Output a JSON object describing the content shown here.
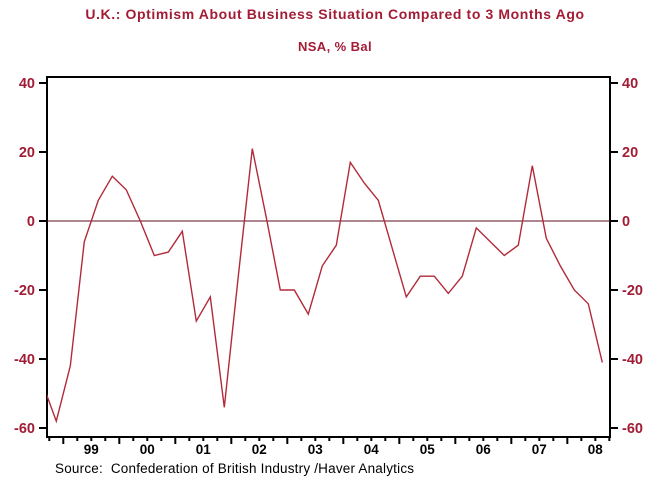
{
  "colors": {
    "accent_crimson": "#A21C35",
    "line_red": "#B22A3A",
    "zero_line": "#5E0D1C",
    "axis_black": "#000000",
    "background": "#FFFFFF"
  },
  "source_caption": "Source:  Confederation of British Industry /Haver Analytics",
  "chart_data": {
    "type": "line",
    "title": "U.K.: Optimism About Business Situation Compared to 3 Months Ago",
    "subtitle": "NSA, % Bal",
    "ylabel": "",
    "xlabel": "",
    "ylim": [
      -60,
      40
    ],
    "yticks": [
      40,
      20,
      0,
      -20,
      -40,
      -60
    ],
    "x_axis_years_shown": [
      "99",
      "00",
      "01",
      "02",
      "03",
      "04",
      "05",
      "06",
      "07",
      "08"
    ],
    "x_range_years": [
      1998.709,
      2008.762
    ],
    "x_start_year": 1998.625,
    "x_step_years": 0.25,
    "grid": "off",
    "zero_line": true,
    "legend": "none",
    "frequency": "quarterly",
    "series": [
      {
        "name": "Optimism About Business Situation vs 3 Months Ago (NSA, % Bal)",
        "quarters": [
          "1998 Q3",
          "1998 Q4",
          "1999 Q1",
          "1999 Q2",
          "1999 Q3",
          "1999 Q4",
          "2000 Q1",
          "2000 Q2",
          "2000 Q3",
          "2000 Q4",
          "2001 Q1",
          "2001 Q2",
          "2001 Q3",
          "2001 Q4",
          "2002 Q1",
          "2002 Q2",
          "2002 Q3",
          "2002 Q4",
          "2003 Q1",
          "2003 Q2",
          "2003 Q3",
          "2003 Q4",
          "2004 Q1",
          "2004 Q2",
          "2004 Q3",
          "2004 Q4",
          "2005 Q1",
          "2005 Q2",
          "2005 Q3",
          "2005 Q4",
          "2006 Q1",
          "2006 Q2",
          "2006 Q3",
          "2006 Q4",
          "2007 Q1",
          "2007 Q2",
          "2007 Q3",
          "2007 Q4",
          "2008 Q1",
          "2008 Q2",
          "2008 Q3"
        ],
        "values": [
          -47,
          -58,
          -42,
          -6,
          6,
          13,
          9,
          0,
          -10,
          -9,
          -3,
          -29,
          -22,
          -54,
          -16,
          21,
          1,
          -20,
          -20,
          -27,
          -13,
          -7,
          17,
          11,
          6,
          -8,
          -22,
          -16,
          -16,
          -21,
          -16,
          -2,
          -6,
          -10,
          -7,
          16,
          -5,
          -13,
          -20,
          -24,
          -41
        ]
      }
    ]
  }
}
